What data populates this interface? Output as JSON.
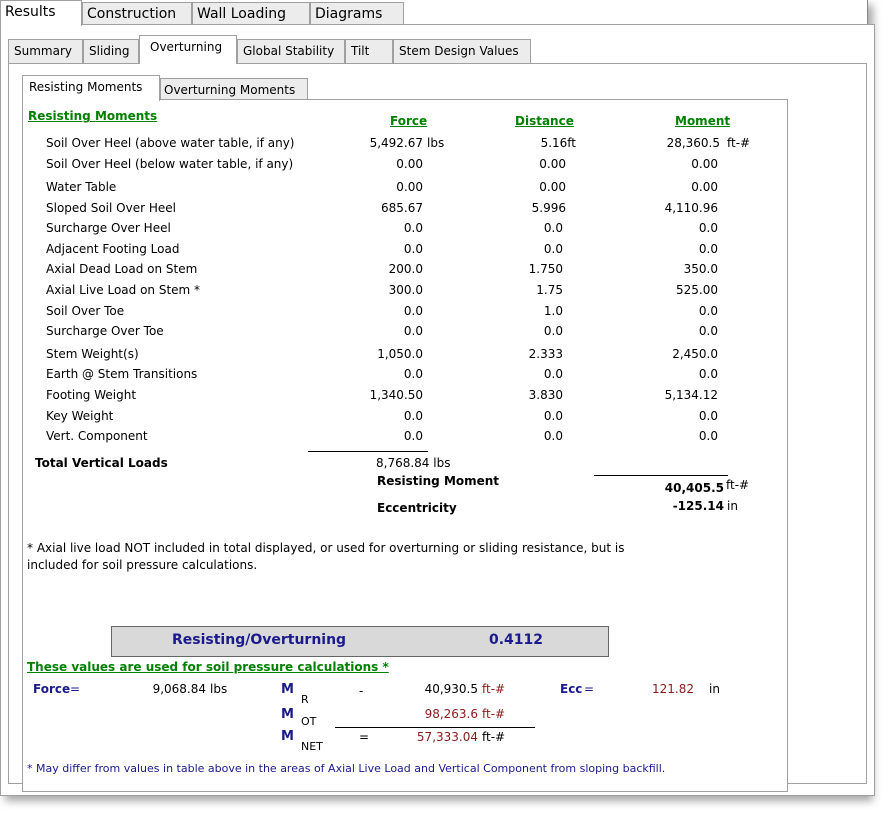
{
  "tabs_top": [
    "Results",
    "Construction",
    "Wall Loading",
    "Diagrams"
  ],
  "tabs_second": [
    "Summary",
    "Sliding",
    "Overturning",
    "Global Stability",
    "Tilt",
    "Stem Design Values"
  ],
  "tabs_third": [
    "Resisting Moments",
    "Overturning Moments"
  ],
  "section_title": "Resisting Moments",
  "columns": {
    "force": "Force",
    "distance": "Distance",
    "moment": "Moment"
  },
  "rows": [
    {
      "label": "Soil Over Heel  (above water table, if any)",
      "force": "5,492.67",
      "force_unit": "lbs",
      "distance": "5.16ft",
      "moment": "28,360.5",
      "moment_unit": "ft-#"
    },
    {
      "label": "Soil Over Heel  (below water table, if any)",
      "force": "0.00",
      "distance": "0.00",
      "moment": "0.00"
    },
    {
      "label": "Water Table",
      "force": "0.00",
      "distance": "0.00",
      "moment": "0.00"
    },
    {
      "label": "Sloped Soil Over Heel",
      "force": "685.67",
      "distance": "5.996",
      "moment": "4,110.96"
    },
    {
      "label": "Surcharge Over Heel",
      "force": "0.0",
      "distance": "0.0",
      "moment": "0.0"
    },
    {
      "label": "Adjacent Footing Load",
      "force": "0.0",
      "distance": "0.0",
      "moment": "0.0"
    },
    {
      "label": "Axial Dead Load on Stem",
      "force": "200.0",
      "distance": "1.750",
      "moment": "350.0"
    },
    {
      "label": "Axial Live Load on Stem  *",
      "force": "300.0",
      "distance": "1.75",
      "moment": "525.00"
    },
    {
      "label": "Soil Over Toe",
      "force": "0.0",
      "distance": "1.0",
      "moment": "0.0"
    },
    {
      "label": "Surcharge Over Toe",
      "force": "0.0",
      "distance": "0.0",
      "moment": "0.0"
    },
    {
      "label": "Stem Weight(s)",
      "force": "1,050.0",
      "distance": "2.333",
      "moment": "2,450.0"
    },
    {
      "label": "Earth @ Stem Transitions",
      "force": "0.0",
      "distance": "0.0",
      "moment": "0.0"
    },
    {
      "label": "Footing Weight",
      "force": "1,340.50",
      "distance": "3.830",
      "moment": "5,134.12"
    },
    {
      "label": "Key Weight",
      "force": "0.0",
      "distance": "0.0",
      "moment": "0.0"
    },
    {
      "label": "Vert. Component",
      "force": "0.0",
      "distance": "0.0",
      "moment": "0.0"
    }
  ],
  "totals": {
    "total_vertical_label": "Total Vertical Loads",
    "total_vertical_value": "8,768.84 lbs",
    "resisting_moment_label": "Resisting Moment",
    "resisting_moment_value": "40,405.5",
    "resisting_moment_unit": "ft-#",
    "eccentricity_label": "Eccentricity",
    "eccentricity_value": "-125.14",
    "eccentricity_unit": "in"
  },
  "note_axial": "* Axial live load NOT included in total displayed, or used for overturning or sliding  resistance, but is included for soil pressure calculations.",
  "ratio": {
    "label": "Resisting/Overturning",
    "value": "0.4112"
  },
  "soil_pressure": {
    "title": "These values are used for soil pressure calculations *",
    "force_label": "Force",
    "eq": "=",
    "force_value": "9,068.84",
    "force_unit": "lbs",
    "m": "M",
    "sub_r": "R",
    "sub_ot": "OT",
    "sub_net": "NET",
    "dash": "-",
    "mr_value": "40,930.5",
    "mot_value": "98,263.6",
    "mnet_value": "57,333.04",
    "unit_ft": "ft-#",
    "ecc_label": "Ecc",
    "ecc_value": "121.82",
    "ecc_unit": "in",
    "footnote": "* May differ from values in table above in the areas of Axial Live Load and Vertical Component from sloping backfill."
  },
  "colors": {
    "green": "#008000",
    "navy": "#1a1a8c",
    "red": "#8b1a1a",
    "box": "#d9d9d9"
  }
}
